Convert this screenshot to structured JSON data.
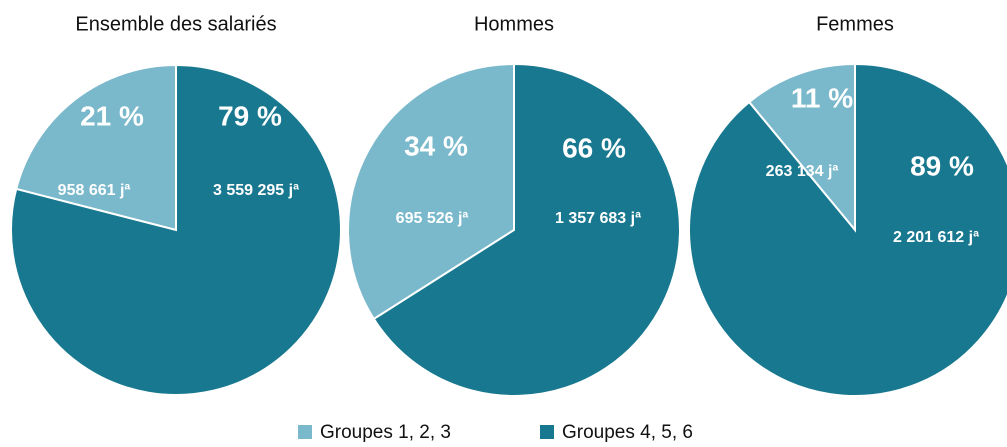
{
  "chart_data": [
    {
      "type": "pie",
      "title": "Ensemble des salariés",
      "categories": [
        "Groupes 1, 2, 3",
        "Groupes 4, 5, 6"
      ],
      "values": [
        21,
        79
      ],
      "value_labels": [
        "21 %",
        "79 %"
      ],
      "annotations": [
        "958 661 jª",
        "3 559 295 jª"
      ],
      "colors": [
        "#7ab8cb",
        "#18788f"
      ]
    },
    {
      "type": "pie",
      "title": "Hommes",
      "categories": [
        "Groupes 1, 2, 3",
        "Groupes 4, 5, 6"
      ],
      "values": [
        34,
        66
      ],
      "value_labels": [
        "34 %",
        "66 %"
      ],
      "annotations": [
        "695 526 jª",
        "1 357 683 jª"
      ],
      "colors": [
        "#7ab8cb",
        "#18788f"
      ]
    },
    {
      "type": "pie",
      "title": "Femmes",
      "categories": [
        "Groupes 1, 2, 3",
        "Groupes 4, 5, 6"
      ],
      "values": [
        11,
        89
      ],
      "value_labels": [
        "11 %",
        "89 %"
      ],
      "annotations": [
        "263 134 jª",
        "2 201 612 jª"
      ],
      "colors": [
        "#7ab8cb",
        "#18788f"
      ]
    }
  ]
}
